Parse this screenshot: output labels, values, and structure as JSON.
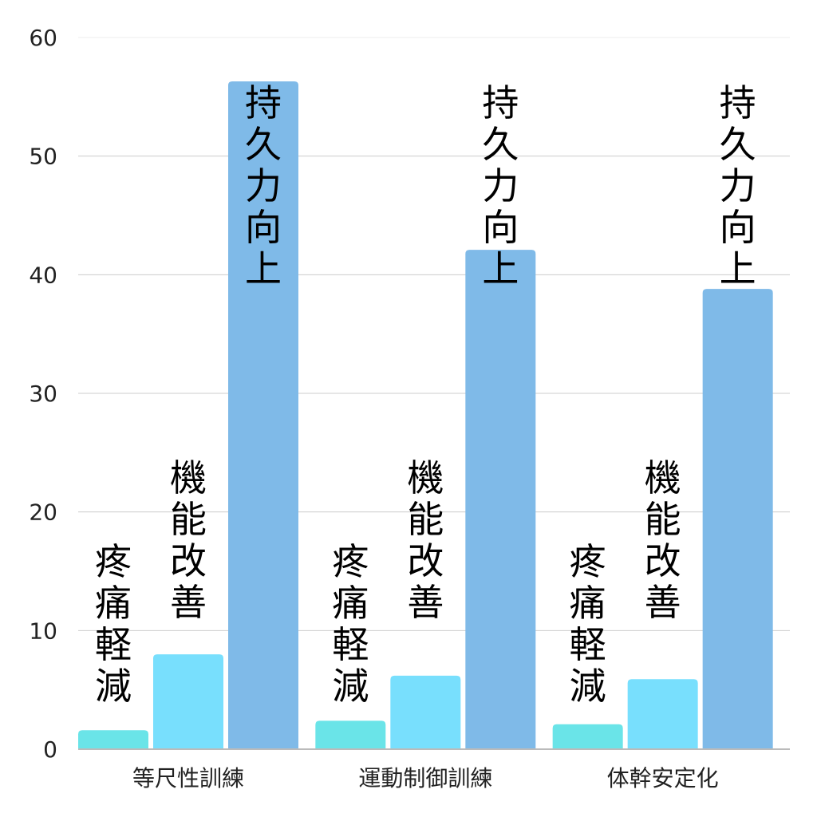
{
  "chart_data": {
    "type": "bar",
    "categories": [
      "等尺性訓練",
      "運動制御訓練",
      "体幹安定化"
    ],
    "series": [
      {
        "name": "疼痛軽減",
        "values": [
          1.6,
          2.4,
          2.1
        ],
        "color": "#6ae4e8"
      },
      {
        "name": "機能改善",
        "values": [
          8.0,
          6.2,
          5.9
        ],
        "color": "#78dffd"
      },
      {
        "name": "持久力向上",
        "values": [
          56.3,
          42.1,
          38.8
        ],
        "color": "#7fbae8"
      }
    ],
    "ylim": [
      0,
      60
    ],
    "yticks": [
      "0",
      "10",
      "20",
      "30",
      "40",
      "50",
      "60"
    ],
    "grid": true,
    "legend": "none",
    "xlabel": "",
    "ylabel": "",
    "title": ""
  }
}
